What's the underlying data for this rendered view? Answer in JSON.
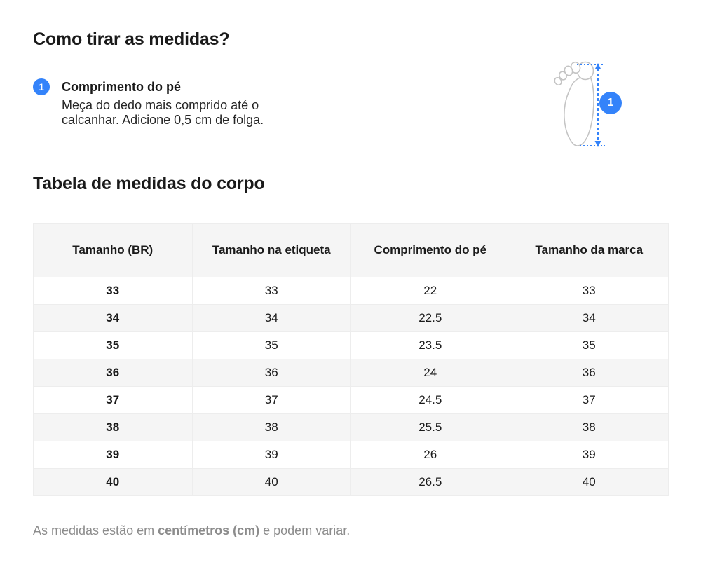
{
  "page": {
    "title": "Como tirar as medidas?",
    "section_title": "Tabela de medidas do corpo"
  },
  "instructions": [
    {
      "number": "1",
      "title": "Comprimento do pé",
      "description": "Meça do dedo mais comprido até o calcanhar. Adicione 0,5 cm de folga."
    }
  ],
  "illustration": {
    "badge_number": "1"
  },
  "table": {
    "headers": [
      "Tamanho (BR)",
      "Tamanho na etiqueta",
      "Comprimento do pé",
      "Tamanho da marca"
    ],
    "rows": [
      [
        "33",
        "33",
        "22",
        "33"
      ],
      [
        "34",
        "34",
        "22.5",
        "34"
      ],
      [
        "35",
        "35",
        "23.5",
        "35"
      ],
      [
        "36",
        "36",
        "24",
        "36"
      ],
      [
        "37",
        "37",
        "24.5",
        "37"
      ],
      [
        "38",
        "38",
        "25.5",
        "38"
      ],
      [
        "39",
        "39",
        "26",
        "39"
      ],
      [
        "40",
        "40",
        "26.5",
        "40"
      ]
    ]
  },
  "footnote": {
    "prefix": "As medidas estão em ",
    "bold": "centímetros (cm)",
    "suffix": " e podem variar."
  },
  "colors": {
    "accent_blue": "#3483fa",
    "text_primary": "#1a1a1a",
    "text_secondary": "#8c8c8c",
    "table_stripe": "#f5f5f5",
    "table_border": "#ededed",
    "foot_outline": "#c4c4c4"
  }
}
